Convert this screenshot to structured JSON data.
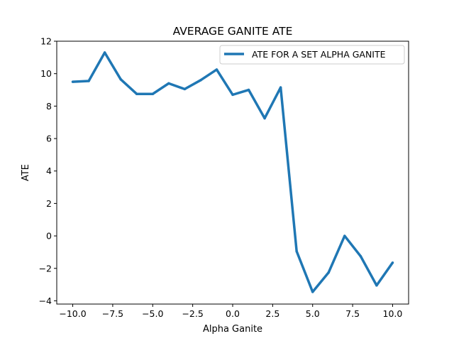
{
  "chart_data": {
    "type": "line",
    "title": "AVERAGE GANITE ATE",
    "xlabel": "Alpha Ganite",
    "ylabel": "ATE",
    "xlim": [
      -11,
      11
    ],
    "ylim": [
      -4.2,
      12
    ],
    "grid": false,
    "legend_position": "top-right",
    "x_ticks": [
      -10.0,
      -7.5,
      -5.0,
      -2.5,
      0.0,
      2.5,
      5.0,
      7.5,
      10.0
    ],
    "x_tick_labels": [
      "−10.0",
      "−7.5",
      "−5.0",
      "−2.5",
      "0.0",
      "2.5",
      "5.0",
      "7.5",
      "10.0"
    ],
    "y_ticks": [
      -4,
      -2,
      0,
      2,
      4,
      6,
      8,
      10,
      12
    ],
    "y_tick_labels": [
      "−4",
      "−2",
      "0",
      "2",
      "4",
      "6",
      "8",
      "10",
      "12"
    ],
    "series": [
      {
        "name": "ATE FOR A SET ALPHA GANITE",
        "color": "#1f77b4",
        "x": [
          -10,
          -9,
          -8,
          -7,
          -6,
          -5,
          -4,
          -3,
          -2,
          -1,
          0,
          1,
          2,
          3,
          4,
          5,
          6,
          7,
          8,
          9,
          10
        ],
        "y": [
          9.5,
          9.55,
          11.3,
          9.65,
          8.75,
          8.75,
          9.4,
          9.05,
          9.6,
          10.25,
          8.7,
          9.0,
          7.25,
          9.15,
          -0.95,
          -3.45,
          -2.25,
          0.0,
          -1.25,
          -3.05,
          -1.65
        ]
      }
    ]
  }
}
